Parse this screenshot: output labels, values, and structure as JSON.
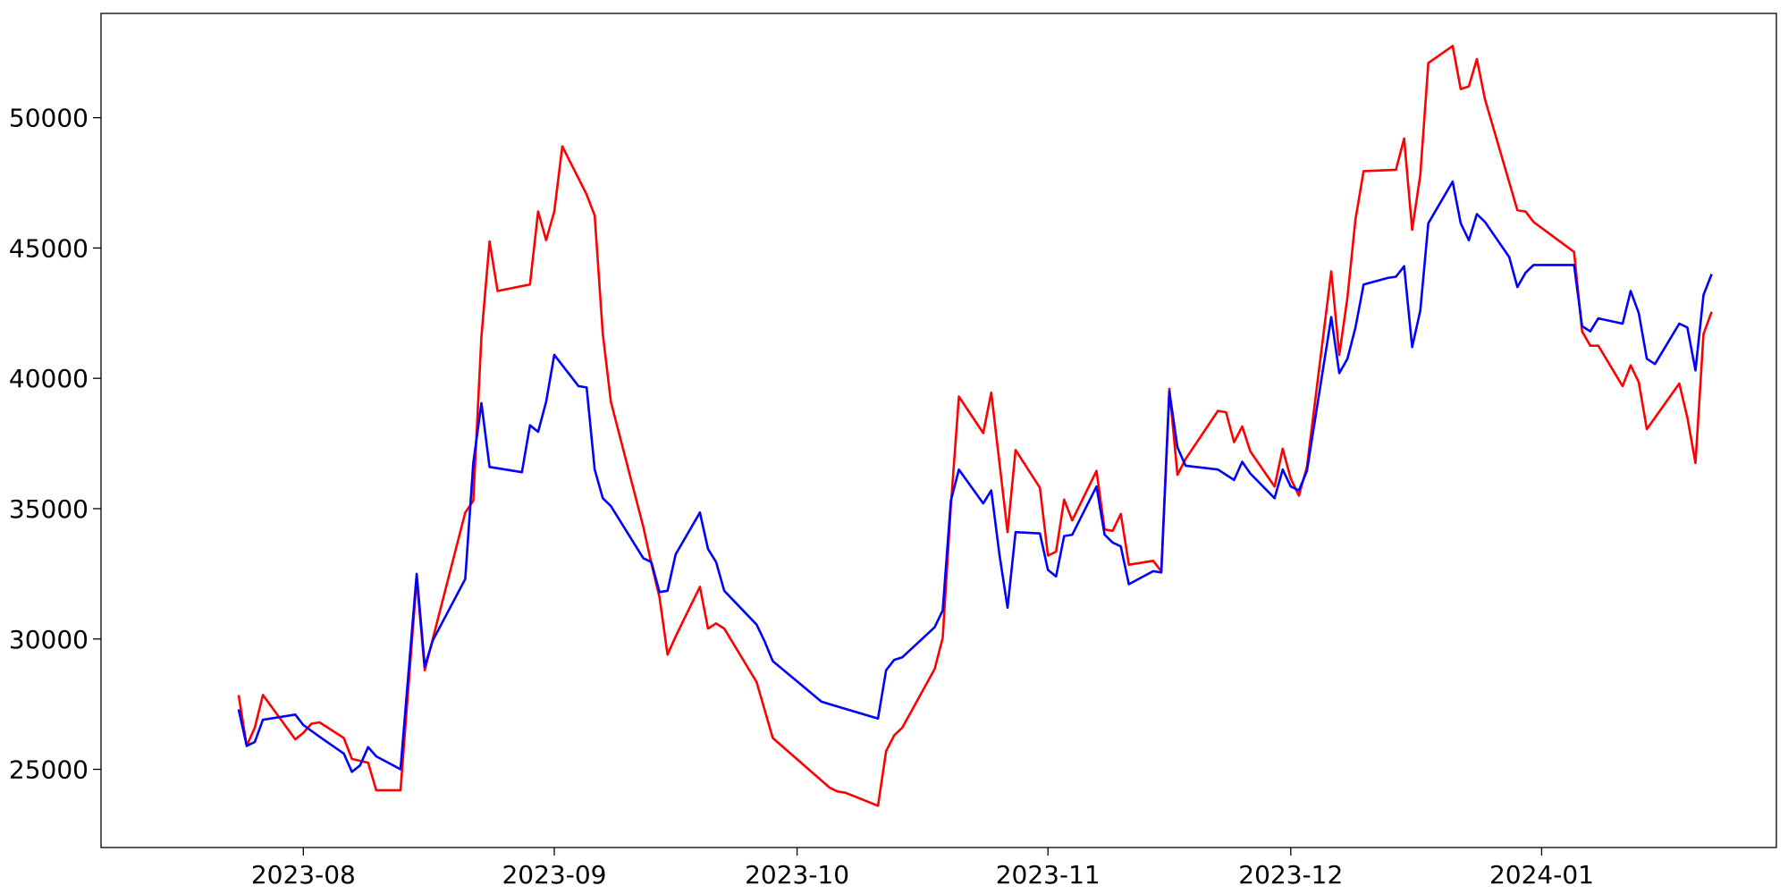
{
  "chart_data": {
    "type": "line",
    "title": "",
    "xlabel": "",
    "ylabel": "",
    "x_ticks": [
      {
        "date": "2023-08-01",
        "label": "2023-08"
      },
      {
        "date": "2023-09-01",
        "label": "2023-09"
      },
      {
        "date": "2023-10-01",
        "label": "2023-10"
      },
      {
        "date": "2023-11-01",
        "label": "2023-11"
      },
      {
        "date": "2023-12-01",
        "label": "2023-12"
      },
      {
        "date": "2024-01-01",
        "label": "2024-01"
      }
    ],
    "y_ticks": [
      25000,
      30000,
      35000,
      40000,
      45000,
      50000
    ],
    "xlim": [
      "2023-07-07",
      "2024-01-30"
    ],
    "ylim": [
      22000,
      54000
    ],
    "grid": false,
    "legend": "none",
    "series": [
      {
        "color": "#ff0000",
        "points": [
          [
            "2023-07-24",
            27850
          ],
          [
            "2023-07-25",
            25900
          ],
          [
            "2023-07-26",
            26600
          ],
          [
            "2023-07-27",
            27850
          ],
          [
            "2023-07-31",
            26150
          ],
          [
            "2023-08-01",
            26400
          ],
          [
            "2023-08-02",
            26750
          ],
          [
            "2023-08-03",
            26800
          ],
          [
            "2023-08-06",
            26200
          ],
          [
            "2023-08-07",
            25400
          ],
          [
            "2023-08-09",
            25250
          ],
          [
            "2023-08-10",
            24200
          ],
          [
            "2023-08-13",
            24200
          ],
          [
            "2023-08-15",
            32300
          ],
          [
            "2023-08-16",
            28800
          ],
          [
            "2023-08-21",
            34850
          ],
          [
            "2023-08-22",
            35300
          ],
          [
            "2023-08-23",
            41600
          ],
          [
            "2023-08-24",
            45250
          ],
          [
            "2023-08-25",
            43350
          ],
          [
            "2023-08-29",
            43600
          ],
          [
            "2023-08-30",
            46400
          ],
          [
            "2023-08-31",
            45300
          ],
          [
            "2023-09-01",
            46400
          ],
          [
            "2023-09-02",
            48900
          ],
          [
            "2023-09-05",
            47050
          ],
          [
            "2023-09-06",
            46250
          ],
          [
            "2023-09-07",
            41700
          ],
          [
            "2023-09-08",
            39100
          ],
          [
            "2023-09-12",
            34300
          ],
          [
            "2023-09-13",
            32900
          ],
          [
            "2023-09-14",
            31600
          ],
          [
            "2023-09-15",
            29400
          ],
          [
            "2023-09-16",
            30100
          ],
          [
            "2023-09-19",
            32000
          ],
          [
            "2023-09-20",
            30400
          ],
          [
            "2023-09-21",
            30600
          ],
          [
            "2023-09-22",
            30400
          ],
          [
            "2023-09-26",
            28350
          ],
          [
            "2023-09-28",
            26200
          ],
          [
            "2023-10-05",
            24300
          ],
          [
            "2023-10-06",
            24150
          ],
          [
            "2023-10-07",
            24100
          ],
          [
            "2023-10-11",
            23600
          ],
          [
            "2023-10-12",
            25700
          ],
          [
            "2023-10-13",
            26300
          ],
          [
            "2023-10-14",
            26600
          ],
          [
            "2023-10-18",
            28850
          ],
          [
            "2023-10-19",
            30050
          ],
          [
            "2023-10-20",
            35100
          ],
          [
            "2023-10-21",
            39300
          ],
          [
            "2023-10-24",
            37900
          ],
          [
            "2023-10-25",
            39450
          ],
          [
            "2023-10-27",
            34100
          ],
          [
            "2023-10-28",
            37250
          ],
          [
            "2023-10-31",
            35800
          ],
          [
            "2023-11-01",
            33200
          ],
          [
            "2023-11-02",
            33350
          ],
          [
            "2023-11-03",
            35350
          ],
          [
            "2023-11-04",
            34550
          ],
          [
            "2023-11-07",
            36450
          ],
          [
            "2023-11-08",
            34200
          ],
          [
            "2023-11-09",
            34150
          ],
          [
            "2023-11-10",
            34800
          ],
          [
            "2023-11-11",
            32850
          ],
          [
            "2023-11-14",
            33000
          ],
          [
            "2023-11-15",
            32600
          ],
          [
            "2023-11-16",
            39600
          ],
          [
            "2023-11-17",
            36300
          ],
          [
            "2023-11-18",
            36900
          ],
          [
            "2023-11-22",
            38750
          ],
          [
            "2023-11-23",
            38700
          ],
          [
            "2023-11-24",
            37550
          ],
          [
            "2023-11-25",
            38150
          ],
          [
            "2023-11-26",
            37200
          ],
          [
            "2023-11-29",
            35850
          ],
          [
            "2023-11-30",
            37300
          ],
          [
            "2023-12-01",
            36150
          ],
          [
            "2023-12-02",
            35500
          ],
          [
            "2023-12-03",
            36600
          ],
          [
            "2023-12-06",
            44100
          ],
          [
            "2023-12-07",
            40900
          ],
          [
            "2023-12-08",
            43100
          ],
          [
            "2023-12-09",
            46100
          ],
          [
            "2023-12-10",
            47950
          ],
          [
            "2023-12-14",
            48000
          ],
          [
            "2023-12-15",
            49200
          ],
          [
            "2023-12-16",
            45700
          ],
          [
            "2023-12-17",
            47800
          ],
          [
            "2023-12-18",
            52100
          ],
          [
            "2023-12-21",
            52750
          ],
          [
            "2023-12-22",
            51100
          ],
          [
            "2023-12-23",
            51200
          ],
          [
            "2023-12-24",
            52250
          ],
          [
            "2023-12-25",
            50700
          ],
          [
            "2023-12-29",
            46450
          ],
          [
            "2023-12-30",
            46400
          ],
          [
            "2023-12-31",
            46000
          ],
          [
            "2024-01-05",
            44850
          ],
          [
            "2024-01-06",
            41800
          ],
          [
            "2024-01-07",
            41250
          ],
          [
            "2024-01-08",
            41250
          ],
          [
            "2024-01-11",
            39700
          ],
          [
            "2024-01-12",
            40500
          ],
          [
            "2024-01-13",
            39850
          ],
          [
            "2024-01-14",
            38050
          ],
          [
            "2024-01-18",
            39800
          ],
          [
            "2024-01-19",
            38500
          ],
          [
            "2024-01-20",
            36750
          ],
          [
            "2024-01-21",
            41700
          ],
          [
            "2024-01-22",
            42550
          ]
        ]
      },
      {
        "color": "#0000ff",
        "points": [
          [
            "2023-07-24",
            27300
          ],
          [
            "2023-07-25",
            25900
          ],
          [
            "2023-07-26",
            26050
          ],
          [
            "2023-07-27",
            26900
          ],
          [
            "2023-07-31",
            27100
          ],
          [
            "2023-08-01",
            26700
          ],
          [
            "2023-08-03",
            26250
          ],
          [
            "2023-08-06",
            25600
          ],
          [
            "2023-08-07",
            24900
          ],
          [
            "2023-08-08",
            25150
          ],
          [
            "2023-08-09",
            25850
          ],
          [
            "2023-08-10",
            25500
          ],
          [
            "2023-08-13",
            25000
          ],
          [
            "2023-08-15",
            32500
          ],
          [
            "2023-08-16",
            28950
          ],
          [
            "2023-08-17",
            29950
          ],
          [
            "2023-08-21",
            32300
          ],
          [
            "2023-08-22",
            36750
          ],
          [
            "2023-08-23",
            39050
          ],
          [
            "2023-08-24",
            36600
          ],
          [
            "2023-08-28",
            36400
          ],
          [
            "2023-08-29",
            38200
          ],
          [
            "2023-08-30",
            37950
          ],
          [
            "2023-08-31",
            39100
          ],
          [
            "2023-09-01",
            40900
          ],
          [
            "2023-09-04",
            39700
          ],
          [
            "2023-09-05",
            39650
          ],
          [
            "2023-09-06",
            36500
          ],
          [
            "2023-09-07",
            35400
          ],
          [
            "2023-09-08",
            35100
          ],
          [
            "2023-09-12",
            33100
          ],
          [
            "2023-09-13",
            32950
          ],
          [
            "2023-09-14",
            31800
          ],
          [
            "2023-09-15",
            31850
          ],
          [
            "2023-09-16",
            33250
          ],
          [
            "2023-09-19",
            34850
          ],
          [
            "2023-09-20",
            33450
          ],
          [
            "2023-09-21",
            32950
          ],
          [
            "2023-09-22",
            31850
          ],
          [
            "2023-09-26",
            30550
          ],
          [
            "2023-09-27",
            29900
          ],
          [
            "2023-09-28",
            29150
          ],
          [
            "2023-10-04",
            27600
          ],
          [
            "2023-10-05",
            27500
          ],
          [
            "2023-10-11",
            26950
          ],
          [
            "2023-10-12",
            28800
          ],
          [
            "2023-10-13",
            29200
          ],
          [
            "2023-10-14",
            29300
          ],
          [
            "2023-10-18",
            30450
          ],
          [
            "2023-10-19",
            31100
          ],
          [
            "2023-10-20",
            35300
          ],
          [
            "2023-10-21",
            36500
          ],
          [
            "2023-10-24",
            35200
          ],
          [
            "2023-10-25",
            35700
          ],
          [
            "2023-10-26",
            33250
          ],
          [
            "2023-10-27",
            31200
          ],
          [
            "2023-10-28",
            34100
          ],
          [
            "2023-10-31",
            34050
          ],
          [
            "2023-11-01",
            32650
          ],
          [
            "2023-11-02",
            32400
          ],
          [
            "2023-11-03",
            33950
          ],
          [
            "2023-11-04",
            34000
          ],
          [
            "2023-11-07",
            35850
          ],
          [
            "2023-11-08",
            34000
          ],
          [
            "2023-11-09",
            33700
          ],
          [
            "2023-11-10",
            33550
          ],
          [
            "2023-11-11",
            32100
          ],
          [
            "2023-11-14",
            32600
          ],
          [
            "2023-11-15",
            32550
          ],
          [
            "2023-11-16",
            39500
          ],
          [
            "2023-11-17",
            37350
          ],
          [
            "2023-11-18",
            36650
          ],
          [
            "2023-11-22",
            36500
          ],
          [
            "2023-11-24",
            36100
          ],
          [
            "2023-11-25",
            36800
          ],
          [
            "2023-11-26",
            36350
          ],
          [
            "2023-11-29",
            35400
          ],
          [
            "2023-11-30",
            36500
          ],
          [
            "2023-12-01",
            35850
          ],
          [
            "2023-12-02",
            35700
          ],
          [
            "2023-12-03",
            36450
          ],
          [
            "2023-12-06",
            42350
          ],
          [
            "2023-12-07",
            40200
          ],
          [
            "2023-12-08",
            40750
          ],
          [
            "2023-12-09",
            41950
          ],
          [
            "2023-12-10",
            43600
          ],
          [
            "2023-12-13",
            43850
          ],
          [
            "2023-12-14",
            43900
          ],
          [
            "2023-12-15",
            44300
          ],
          [
            "2023-12-16",
            41200
          ],
          [
            "2023-12-17",
            42600
          ],
          [
            "2023-12-18",
            45950
          ],
          [
            "2023-12-21",
            47550
          ],
          [
            "2023-12-22",
            45950
          ],
          [
            "2023-12-23",
            45300
          ],
          [
            "2023-12-24",
            46300
          ],
          [
            "2023-12-25",
            46000
          ],
          [
            "2023-12-28",
            44650
          ],
          [
            "2023-12-29",
            43500
          ],
          [
            "2023-12-30",
            44050
          ],
          [
            "2023-12-31",
            44350
          ],
          [
            "2024-01-05",
            44350
          ],
          [
            "2024-01-06",
            42000
          ],
          [
            "2024-01-07",
            41800
          ],
          [
            "2024-01-08",
            42300
          ],
          [
            "2024-01-11",
            42100
          ],
          [
            "2024-01-12",
            43350
          ],
          [
            "2024-01-13",
            42500
          ],
          [
            "2024-01-14",
            40750
          ],
          [
            "2024-01-15",
            40550
          ],
          [
            "2024-01-18",
            42100
          ],
          [
            "2024-01-19",
            41950
          ],
          [
            "2024-01-20",
            40300
          ],
          [
            "2024-01-21",
            43200
          ],
          [
            "2024-01-22",
            44000
          ]
        ]
      }
    ]
  }
}
